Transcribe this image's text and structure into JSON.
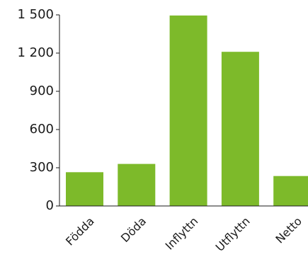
{
  "chart_data": {
    "type": "bar",
    "categories": [
      "Födda",
      "Döda",
      "Inflyttn",
      "Utflyttn",
      "Netto"
    ],
    "values": [
      265,
      330,
      1495,
      1210,
      235
    ],
    "ylim": [
      0,
      1500
    ],
    "yticks": [
      0,
      300,
      600,
      900,
      1200,
      1500
    ],
    "ytick_labels": [
      "0",
      "300",
      "600",
      "900",
      "1 200",
      "1 500"
    ],
    "bar_color": "#7dba2a",
    "grid": false,
    "legend": "none"
  }
}
